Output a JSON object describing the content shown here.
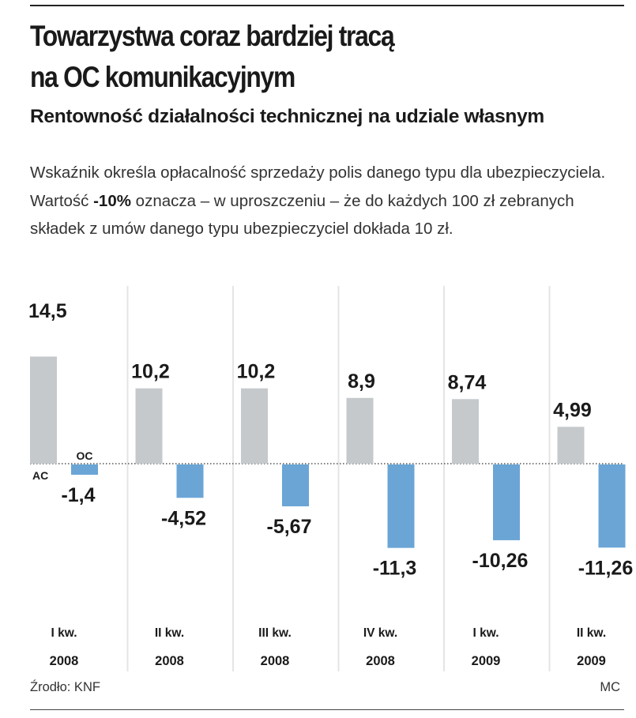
{
  "header": {
    "title": "Towarzystwa coraz bardziej tracą\nna OC komunikacyjnym",
    "subtitle": "Rentowność działalności technicznej na udziale własnym",
    "description_before": "Wskaźnik określa opłacalność sprzedaży polis danego typu dla ubezpieczyciela. Wartość ",
    "description_bold": "-10%",
    "description_after": " oznacza – w uproszczeniu – że do każdych 100 zł zebranych składek z umów danego typu ubezpieczyciel dokłada 10 zł."
  },
  "footer": {
    "source": "Źrodło: KNF",
    "credit": "MC"
  },
  "colors": {
    "ac": "#c5c9cc",
    "oc": "#6aa5d6",
    "separator": "#e4e4e4",
    "text": "#1a1a1a"
  },
  "chart_data": {
    "type": "bar",
    "title": "Rentowność działalności technicznej na udziale własnym",
    "categories": [
      {
        "quarter": "I kw.",
        "year": "2008"
      },
      {
        "quarter": "II kw.",
        "year": "2008"
      },
      {
        "quarter": "III kw.",
        "year": "2008"
      },
      {
        "quarter": "IV kw.",
        "year": "2008"
      },
      {
        "quarter": "I kw.",
        "year": "2009"
      },
      {
        "quarter": "II kw.",
        "year": "2009"
      }
    ],
    "series": [
      {
        "name": "AC",
        "values": [
          14.5,
          10.2,
          10.2,
          8.9,
          8.74,
          4.99
        ],
        "labels": [
          "14,5",
          "10,2",
          "10,2",
          "8,9",
          "8,74",
          "4,99"
        ]
      },
      {
        "name": "OC",
        "values": [
          -1.4,
          -4.52,
          -5.67,
          -11.3,
          -10.26,
          -11.26
        ],
        "labels": [
          "-1,4",
          "-4,52",
          "-5,67",
          "-11,3",
          "-10,26",
          "-11,26"
        ]
      }
    ],
    "ylim": [
      -11.3,
      14.5
    ],
    "grid": false,
    "legend": "inline labels on first group"
  }
}
